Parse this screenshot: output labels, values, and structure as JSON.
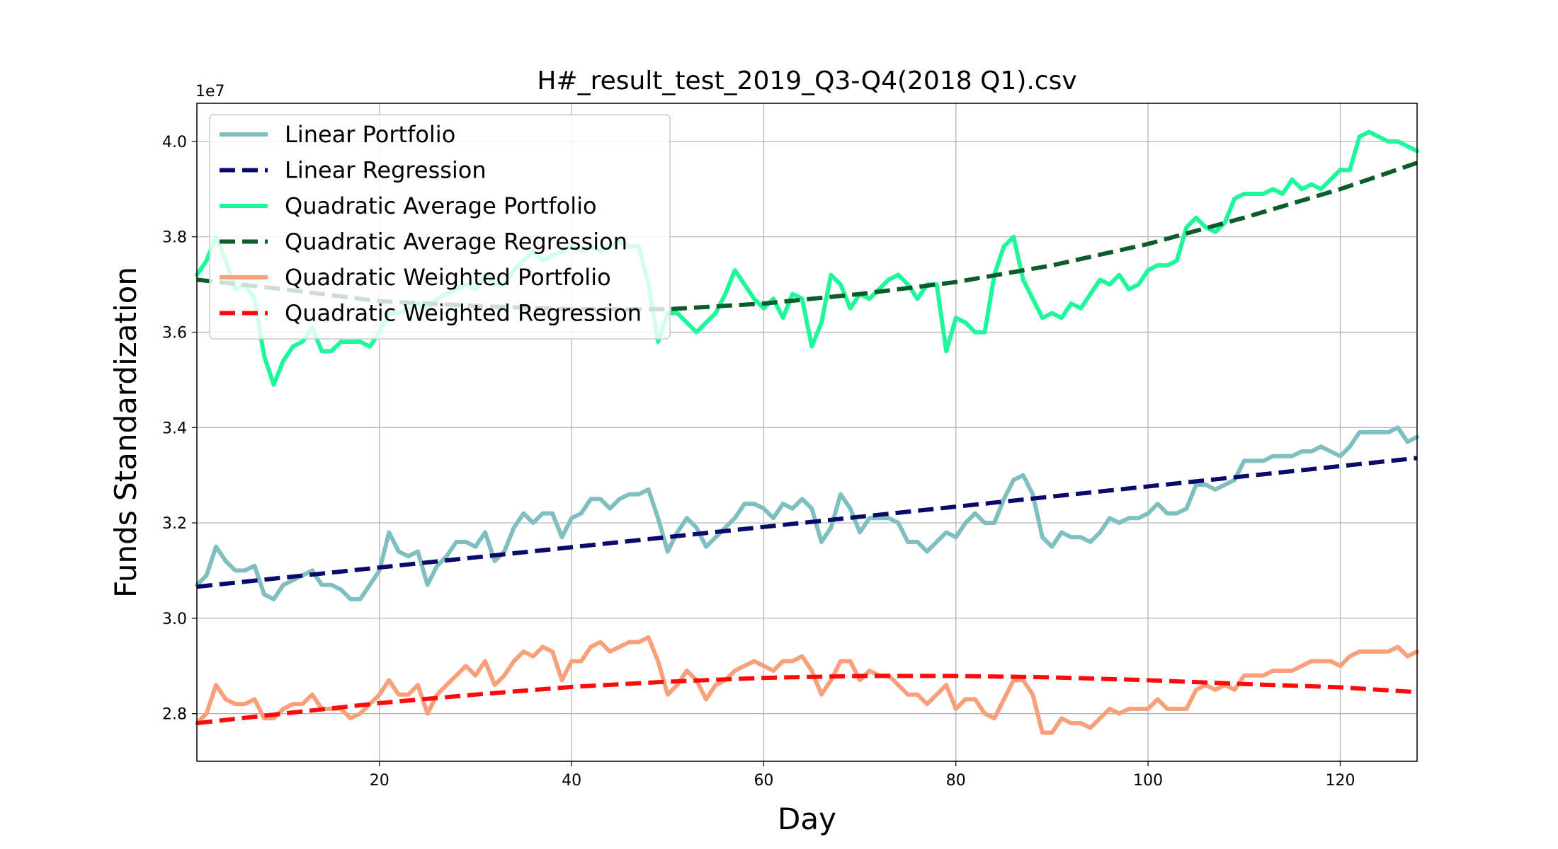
{
  "chart_data": {
    "type": "line",
    "title": "H#_result_test_2019_Q3-Q4(2018 Q1).csv",
    "xlabel": "Day",
    "ylabel": "Funds Standardization",
    "y_offset_label": "1e7",
    "xlim": [
      1,
      128
    ],
    "ylim": [
      2.7,
      4.08
    ],
    "x_ticks": [
      20,
      40,
      60,
      80,
      100,
      120
    ],
    "y_ticks": [
      2.8,
      3.0,
      3.2,
      3.4,
      3.6,
      3.8,
      4.0
    ],
    "y_tick_labels": [
      "2.8",
      "3.0",
      "3.2",
      "3.4",
      "3.6",
      "3.8",
      "4.0"
    ],
    "grid": true,
    "legend_position": "upper-left",
    "series": [
      {
        "name": "Linear Portfolio",
        "color": "#7fbfbf",
        "style": "solid",
        "x": [
          1,
          2,
          3,
          4,
          5,
          6,
          7,
          8,
          9,
          10,
          12,
          13,
          14,
          15,
          16,
          17,
          18,
          19,
          20,
          21,
          22,
          23,
          24,
          25,
          26,
          27,
          28,
          29,
          30,
          31,
          32,
          33,
          34,
          35,
          36,
          37,
          38,
          39,
          40,
          41,
          42,
          43,
          44,
          45,
          46,
          47,
          48,
          49,
          50,
          51,
          52,
          53,
          54,
          55,
          56,
          57,
          58,
          59,
          60,
          61,
          62,
          63,
          64,
          65,
          66,
          67,
          68,
          69,
          70,
          71,
          72,
          73,
          74,
          75,
          76,
          77,
          78,
          79,
          80,
          81,
          82,
          83,
          84,
          85,
          86,
          87,
          88,
          89,
          90,
          91,
          92,
          93,
          94,
          95,
          96,
          97,
          98,
          99,
          100,
          101,
          102,
          103,
          104,
          105,
          106,
          107,
          108,
          109,
          110,
          111,
          112,
          113,
          114,
          115,
          116,
          117,
          118,
          119,
          120,
          121,
          122,
          123,
          124,
          125,
          126,
          127,
          128
        ],
        "y": [
          3.07,
          3.09,
          3.15,
          3.12,
          3.1,
          3.1,
          3.11,
          3.05,
          3.04,
          3.07,
          3.09,
          3.1,
          3.07,
          3.07,
          3.06,
          3.04,
          3.04,
          3.07,
          3.1,
          3.18,
          3.14,
          3.13,
          3.14,
          3.07,
          3.11,
          3.13,
          3.16,
          3.16,
          3.15,
          3.18,
          3.12,
          3.14,
          3.19,
          3.22,
          3.2,
          3.22,
          3.22,
          3.17,
          3.21,
          3.22,
          3.25,
          3.25,
          3.23,
          3.25,
          3.26,
          3.26,
          3.27,
          3.21,
          3.14,
          3.18,
          3.21,
          3.19,
          3.15,
          3.17,
          3.19,
          3.21,
          3.24,
          3.24,
          3.23,
          3.21,
          3.24,
          3.23,
          3.25,
          3.23,
          3.16,
          3.19,
          3.26,
          3.23,
          3.18,
          3.21,
          3.21,
          3.21,
          3.2,
          3.16,
          3.16,
          3.14,
          3.16,
          3.18,
          3.17,
          3.2,
          3.22,
          3.2,
          3.2,
          3.25,
          3.29,
          3.3,
          3.26,
          3.17,
          3.15,
          3.18,
          3.17,
          3.17,
          3.16,
          3.18,
          3.21,
          3.2,
          3.21,
          3.21,
          3.22,
          3.24,
          3.22,
          3.22,
          3.23,
          3.28,
          3.28,
          3.27,
          3.28,
          3.29,
          3.33,
          3.33,
          3.33,
          3.34,
          3.34,
          3.34,
          3.35,
          3.35,
          3.36,
          3.35,
          3.34,
          3.36,
          3.39,
          3.39,
          3.39,
          3.39,
          3.4,
          3.37,
          3.38
        ]
      },
      {
        "name": "Linear Regression",
        "color": "#0a0a6b",
        "style": "dashed",
        "x": [
          1,
          128
        ],
        "y": [
          3.066,
          3.336
        ]
      },
      {
        "name": "Quadratic Average Portfolio",
        "color": "#1ef79a",
        "style": "solid",
        "x": [
          1,
          2,
          3,
          4,
          5,
          6,
          7,
          8,
          9,
          10,
          11,
          12,
          13,
          14,
          15,
          16,
          17,
          18,
          19,
          20,
          21,
          22,
          23,
          24,
          25,
          26,
          27,
          28,
          29,
          30,
          31,
          32,
          33,
          34,
          35,
          36,
          37,
          38,
          39,
          40,
          41,
          42,
          43,
          44,
          45,
          46,
          47,
          48,
          49,
          50,
          51,
          52,
          53,
          54,
          55,
          56,
          57,
          58,
          59,
          60,
          61,
          62,
          63,
          64,
          65,
          66,
          67,
          68,
          69,
          70,
          71,
          72,
          73,
          74,
          75,
          76,
          77,
          78,
          79,
          80,
          81,
          82,
          83,
          84,
          85,
          86,
          87,
          88,
          89,
          90,
          91,
          92,
          93,
          94,
          95,
          96,
          97,
          98,
          99,
          100,
          101,
          102,
          103,
          104,
          105,
          106,
          107,
          108,
          109,
          110,
          111,
          112,
          113,
          114,
          115,
          116,
          117,
          118,
          119,
          120,
          121,
          122,
          123,
          124,
          125,
          126,
          127,
          128
        ],
        "y": [
          3.72,
          3.75,
          3.8,
          3.75,
          3.69,
          3.7,
          3.67,
          3.55,
          3.49,
          3.54,
          3.57,
          3.58,
          3.61,
          3.56,
          3.56,
          3.58,
          3.58,
          3.58,
          3.57,
          3.6,
          3.64,
          3.64,
          3.65,
          3.66,
          3.65,
          3.67,
          3.68,
          3.69,
          3.7,
          3.69,
          3.72,
          3.7,
          3.7,
          3.73,
          3.75,
          3.77,
          3.75,
          3.76,
          3.77,
          3.78,
          3.77,
          3.78,
          3.77,
          3.78,
          3.79,
          3.78,
          3.78,
          3.7,
          3.58,
          3.64,
          3.64,
          3.62,
          3.6,
          3.62,
          3.64,
          3.68,
          3.73,
          3.7,
          3.67,
          3.65,
          3.67,
          3.63,
          3.68,
          3.67,
          3.57,
          3.62,
          3.72,
          3.7,
          3.65,
          3.68,
          3.67,
          3.69,
          3.71,
          3.72,
          3.7,
          3.67,
          3.7,
          3.7,
          3.56,
          3.63,
          3.62,
          3.6,
          3.6,
          3.72,
          3.78,
          3.8,
          3.71,
          3.67,
          3.63,
          3.64,
          3.63,
          3.66,
          3.65,
          3.68,
          3.71,
          3.7,
          3.72,
          3.69,
          3.7,
          3.73,
          3.74,
          3.74,
          3.75,
          3.82,
          3.84,
          3.82,
          3.81,
          3.83,
          3.88,
          3.89,
          3.89,
          3.89,
          3.9,
          3.89,
          3.92,
          3.9,
          3.91,
          3.9,
          3.92,
          3.94,
          3.94,
          4.01,
          4.02,
          4.01,
          4.0,
          4.0,
          3.99,
          3.98
        ]
      },
      {
        "name": "Quadratic Average Regression",
        "color": "#0b5c2a",
        "style": "dashed",
        "x": [
          1,
          10,
          20,
          30,
          40,
          50,
          60,
          70,
          80,
          90,
          100,
          110,
          120,
          128
        ],
        "y": [
          3.71,
          3.69,
          3.665,
          3.655,
          3.648,
          3.648,
          3.66,
          3.68,
          3.705,
          3.74,
          3.785,
          3.84,
          3.9,
          3.955
        ]
      },
      {
        "name": "Quadratic Weighted Portfolio",
        "color": "#f7a07a",
        "style": "solid",
        "x": [
          1,
          2,
          3,
          4,
          5,
          6,
          7,
          8,
          9,
          10,
          11,
          12,
          13,
          14,
          15,
          16,
          17,
          18,
          19,
          20,
          21,
          22,
          23,
          24,
          25,
          26,
          27,
          28,
          29,
          30,
          31,
          32,
          33,
          34,
          35,
          36,
          37,
          38,
          39,
          40,
          41,
          42,
          43,
          44,
          45,
          46,
          47,
          48,
          49,
          50,
          51,
          52,
          53,
          54,
          55,
          56,
          57,
          58,
          59,
          60,
          61,
          62,
          63,
          64,
          65,
          66,
          67,
          68,
          69,
          70,
          71,
          72,
          73,
          74,
          75,
          76,
          77,
          78,
          79,
          80,
          81,
          82,
          83,
          84,
          85,
          86,
          87,
          88,
          89,
          90,
          91,
          92,
          93,
          94,
          95,
          96,
          97,
          98,
          99,
          100,
          101,
          102,
          103,
          104,
          105,
          106,
          107,
          108,
          109,
          110,
          111,
          112,
          113,
          114,
          115,
          116,
          117,
          118,
          119,
          120,
          121,
          122,
          123,
          124,
          125,
          126,
          127,
          128
        ],
        "y": [
          2.78,
          2.8,
          2.86,
          2.83,
          2.82,
          2.82,
          2.83,
          2.79,
          2.79,
          2.81,
          2.82,
          2.82,
          2.84,
          2.81,
          2.81,
          2.81,
          2.79,
          2.8,
          2.82,
          2.84,
          2.87,
          2.84,
          2.84,
          2.86,
          2.8,
          2.84,
          2.86,
          2.88,
          2.9,
          2.88,
          2.91,
          2.86,
          2.88,
          2.91,
          2.93,
          2.92,
          2.94,
          2.93,
          2.87,
          2.91,
          2.91,
          2.94,
          2.95,
          2.93,
          2.94,
          2.95,
          2.95,
          2.96,
          2.91,
          2.84,
          2.86,
          2.89,
          2.87,
          2.83,
          2.86,
          2.87,
          2.89,
          2.9,
          2.91,
          2.9,
          2.89,
          2.91,
          2.91,
          2.92,
          2.89,
          2.84,
          2.87,
          2.91,
          2.91,
          2.87,
          2.89,
          2.88,
          2.88,
          2.86,
          2.84,
          2.84,
          2.82,
          2.84,
          2.86,
          2.81,
          2.83,
          2.83,
          2.8,
          2.79,
          2.83,
          2.87,
          2.87,
          2.84,
          2.76,
          2.76,
          2.79,
          2.78,
          2.78,
          2.77,
          2.79,
          2.81,
          2.8,
          2.81,
          2.81,
          2.81,
          2.83,
          2.81,
          2.81,
          2.81,
          2.85,
          2.86,
          2.85,
          2.86,
          2.85,
          2.88,
          2.88,
          2.88,
          2.89,
          2.89,
          2.89,
          2.9,
          2.91,
          2.91,
          2.91,
          2.9,
          2.92,
          2.93,
          2.93,
          2.93,
          2.93,
          2.94,
          2.92,
          2.93
        ]
      },
      {
        "name": "Quadratic Weighted Regression",
        "color": "#ff0a0a",
        "style": "dashed",
        "x": [
          1,
          10,
          20,
          30,
          40,
          50,
          60,
          70,
          80,
          90,
          100,
          110,
          120,
          128
        ],
        "y": [
          2.78,
          2.8,
          2.822,
          2.84,
          2.856,
          2.867,
          2.875,
          2.879,
          2.879,
          2.876,
          2.87,
          2.862,
          2.855,
          2.845
        ]
      }
    ]
  }
}
